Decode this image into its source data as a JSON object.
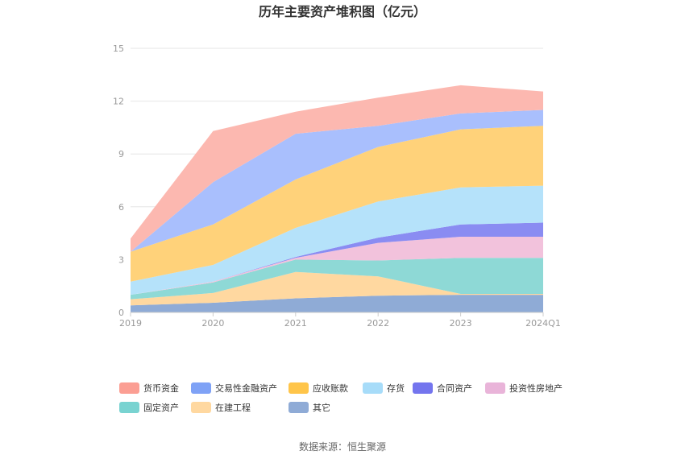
{
  "chart_data": {
    "type": "area",
    "stacked": true,
    "title": "历年主要资产堆积图（亿元）",
    "categories": [
      "2019",
      "2020",
      "2021",
      "2022",
      "2023",
      "2024Q1"
    ],
    "ylim": [
      0,
      15
    ],
    "yticks": [
      "0",
      "3",
      "6",
      "9",
      "12",
      "15"
    ],
    "grid": true,
    "legend_position": "bottom",
    "series": [
      {
        "name": "其它",
        "color": "#8fabd6",
        "values": [
          0.4,
          0.55,
          0.8,
          0.95,
          1.0,
          1.0
        ]
      },
      {
        "name": "在建工程",
        "color": "#ffd8a0",
        "values": [
          0.35,
          0.55,
          1.5,
          1.1,
          0.05,
          0.05
        ]
      },
      {
        "name": "固定资产",
        "color": "#8ed9d6",
        "values": [
          0.25,
          0.6,
          0.7,
          0.9,
          2.05,
          2.05
        ]
      },
      {
        "name": "投资性房地产",
        "color": "#f2c2dc",
        "values": [
          0.0,
          0.05,
          0.1,
          1.0,
          1.2,
          1.2
        ]
      },
      {
        "name": "合同资产",
        "color": "#8a8cf2",
        "values": [
          0.0,
          0.0,
          0.05,
          0.3,
          0.7,
          0.8
        ]
      },
      {
        "name": "存货",
        "color": "#b5e2fa",
        "values": [
          0.75,
          0.95,
          1.65,
          2.05,
          2.1,
          2.1
        ]
      },
      {
        "name": "应收账款",
        "color": "#ffd27a",
        "values": [
          1.7,
          2.3,
          2.75,
          3.1,
          3.3,
          3.4
        ]
      },
      {
        "name": "交易性金融资产",
        "color": "#a9bffd",
        "values": [
          0.0,
          2.4,
          2.6,
          1.2,
          0.9,
          0.9
        ]
      },
      {
        "name": "货币资金",
        "color": "#fcb8b0",
        "values": [
          0.75,
          2.9,
          1.25,
          1.6,
          1.6,
          1.05
        ]
      }
    ],
    "legend_order": [
      "货币资金",
      "交易性金融资产",
      "应收账款",
      "存货",
      "合同资产",
      "投资性房地产",
      "固定资产",
      "在建工程",
      "其它"
    ],
    "legend_colors": {
      "货币资金": "#fb9e93",
      "交易性金融资产": "#7fa2f6",
      "应收账款": "#ffc54a",
      "存货": "#a7dcf9",
      "合同资产": "#7475ee",
      "投资性房地产": "#e9b4d9",
      "固定资产": "#79d3d1",
      "在建工程": "#ffd8a0",
      "其它": "#8fabd6"
    }
  },
  "source": "数据来源：恒生聚源"
}
